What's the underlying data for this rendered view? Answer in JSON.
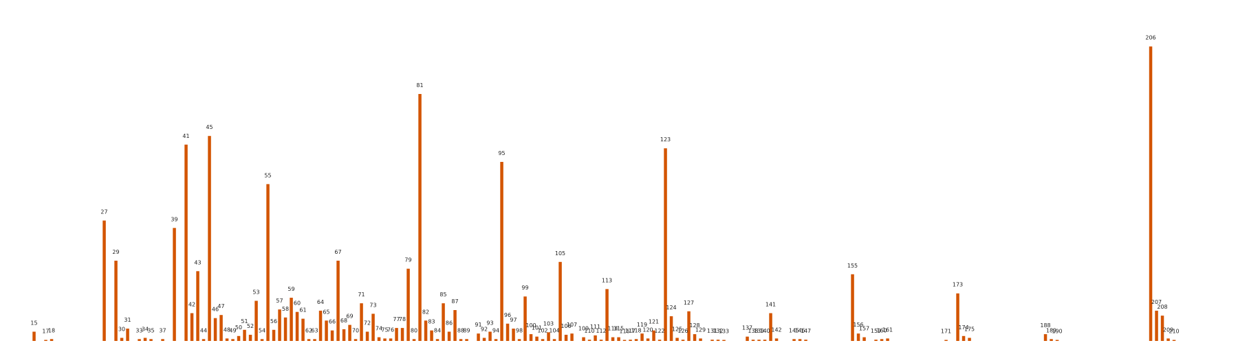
{
  "chart_data": {
    "type": "bar",
    "title": "",
    "xlabel": "",
    "ylabel": "",
    "grid": false,
    "color": "#d35400",
    "x_range": [
      12,
      212
    ],
    "ylim": [
      0,
      470
    ],
    "bars": [
      {
        "x": 15,
        "value": 15,
        "label": "15"
      },
      {
        "x": 17,
        "value": 1,
        "label": "17"
      },
      {
        "x": 18,
        "value": 3,
        "label": "18"
      },
      {
        "x": 27,
        "value": 195,
        "label": "27"
      },
      {
        "x": 29,
        "value": 130,
        "label": "29"
      },
      {
        "x": 30,
        "value": 5,
        "label": "30"
      },
      {
        "x": 31,
        "value": 20,
        "label": "31"
      },
      {
        "x": 33,
        "value": 3,
        "label": "33"
      },
      {
        "x": 34,
        "value": 5,
        "label": "34"
      },
      {
        "x": 35,
        "value": 3,
        "label": "35"
      },
      {
        "x": 37,
        "value": 3,
        "label": "37"
      },
      {
        "x": 39,
        "value": 183,
        "label": "39"
      },
      {
        "x": 41,
        "value": 318,
        "label": "41"
      },
      {
        "x": 42,
        "value": 45,
        "label": "42"
      },
      {
        "x": 43,
        "value": 113,
        "label": "43"
      },
      {
        "x": 44,
        "value": 3,
        "label": "44"
      },
      {
        "x": 45,
        "value": 332,
        "label": "45"
      },
      {
        "x": 46,
        "value": 37,
        "label": "46"
      },
      {
        "x": 47,
        "value": 42,
        "label": "47"
      },
      {
        "x": 48,
        "value": 4,
        "label": "48"
      },
      {
        "x": 49,
        "value": 3,
        "label": "49"
      },
      {
        "x": 50,
        "value": 8,
        "label": "50"
      },
      {
        "x": 51,
        "value": 18,
        "label": "51"
      },
      {
        "x": 52,
        "value": 10,
        "label": "52"
      },
      {
        "x": 53,
        "value": 65,
        "label": "53"
      },
      {
        "x": 54,
        "value": 3,
        "label": "54"
      },
      {
        "x": 55,
        "value": 254,
        "label": "55"
      },
      {
        "x": 56,
        "value": 18,
        "label": "56"
      },
      {
        "x": 57,
        "value": 51,
        "label": "57"
      },
      {
        "x": 58,
        "value": 38,
        "label": "58"
      },
      {
        "x": 59,
        "value": 70,
        "label": "59"
      },
      {
        "x": 60,
        "value": 47,
        "label": "60"
      },
      {
        "x": 61,
        "value": 36,
        "label": "61"
      },
      {
        "x": 62,
        "value": 3,
        "label": "62"
      },
      {
        "x": 63,
        "value": 3,
        "label": "63"
      },
      {
        "x": 64,
        "value": 49,
        "label": "64"
      },
      {
        "x": 65,
        "value": 33,
        "label": "65"
      },
      {
        "x": 66,
        "value": 17,
        "label": "66"
      },
      {
        "x": 67,
        "value": 130,
        "label": "67"
      },
      {
        "x": 68,
        "value": 19,
        "label": "68"
      },
      {
        "x": 69,
        "value": 26,
        "label": "69"
      },
      {
        "x": 70,
        "value": 3,
        "label": "70"
      },
      {
        "x": 71,
        "value": 61,
        "label": "71"
      },
      {
        "x": 72,
        "value": 15,
        "label": "72"
      },
      {
        "x": 73,
        "value": 44,
        "label": "73"
      },
      {
        "x": 74,
        "value": 6,
        "label": "74"
      },
      {
        "x": 75,
        "value": 4,
        "label": "75"
      },
      {
        "x": 76,
        "value": 4,
        "label": "76"
      },
      {
        "x": 77,
        "value": 21,
        "label": "77"
      },
      {
        "x": 78,
        "value": 21,
        "label": "78"
      },
      {
        "x": 79,
        "value": 117,
        "label": "79"
      },
      {
        "x": 80,
        "value": 3,
        "label": "80"
      },
      {
        "x": 81,
        "value": 400,
        "label": "81"
      },
      {
        "x": 82,
        "value": 33,
        "label": "82"
      },
      {
        "x": 83,
        "value": 17,
        "label": "83"
      },
      {
        "x": 84,
        "value": 3,
        "label": "84"
      },
      {
        "x": 85,
        "value": 61,
        "label": "85"
      },
      {
        "x": 86,
        "value": 15,
        "label": "86"
      },
      {
        "x": 87,
        "value": 50,
        "label": "87"
      },
      {
        "x": 88,
        "value": 3,
        "label": "88"
      },
      {
        "x": 89,
        "value": 3,
        "label": "89"
      },
      {
        "x": 91,
        "value": 12,
        "label": "91"
      },
      {
        "x": 92,
        "value": 5,
        "label": "92"
      },
      {
        "x": 93,
        "value": 15,
        "label": "93"
      },
      {
        "x": 94,
        "value": 3,
        "label": "94"
      },
      {
        "x": 95,
        "value": 290,
        "label": "95"
      },
      {
        "x": 96,
        "value": 28,
        "label": "96"
      },
      {
        "x": 97,
        "value": 20,
        "label": "97"
      },
      {
        "x": 98,
        "value": 3,
        "label": "98"
      },
      {
        "x": 99,
        "value": 72,
        "label": "99"
      },
      {
        "x": 100,
        "value": 11,
        "label": "100"
      },
      {
        "x": 101,
        "value": 7,
        "label": "101"
      },
      {
        "x": 102,
        "value": 3,
        "label": "102"
      },
      {
        "x": 103,
        "value": 14,
        "label": "103"
      },
      {
        "x": 104,
        "value": 3,
        "label": "104"
      },
      {
        "x": 105,
        "value": 128,
        "label": "105"
      },
      {
        "x": 106,
        "value": 10,
        "label": "106"
      },
      {
        "x": 107,
        "value": 12,
        "label": "107"
      },
      {
        "x": 109,
        "value": 6,
        "label": "109"
      },
      {
        "x": 110,
        "value": 2,
        "label": "110"
      },
      {
        "x": 111,
        "value": 9,
        "label": "111"
      },
      {
        "x": 112,
        "value": 2,
        "label": "112"
      },
      {
        "x": 113,
        "value": 84,
        "label": "113"
      },
      {
        "x": 114,
        "value": 6,
        "label": "114"
      },
      {
        "x": 115,
        "value": 6,
        "label": "115"
      },
      {
        "x": 116,
        "value": 1,
        "label": "116"
      },
      {
        "x": 117,
        "value": 2,
        "label": "117"
      },
      {
        "x": 118,
        "value": 3,
        "label": "118"
      },
      {
        "x": 119,
        "value": 12,
        "label": "119"
      },
      {
        "x": 120,
        "value": 4,
        "label": "120"
      },
      {
        "x": 121,
        "value": 17,
        "label": "121"
      },
      {
        "x": 122,
        "value": 2,
        "label": "122"
      },
      {
        "x": 123,
        "value": 312,
        "label": "123"
      },
      {
        "x": 124,
        "value": 40,
        "label": "124"
      },
      {
        "x": 125,
        "value": 5,
        "label": "125"
      },
      {
        "x": 126,
        "value": 2,
        "label": "126"
      },
      {
        "x": 127,
        "value": 48,
        "label": "127"
      },
      {
        "x": 128,
        "value": 11,
        "label": "128"
      },
      {
        "x": 129,
        "value": 4,
        "label": "129"
      },
      {
        "x": 131,
        "value": 2,
        "label": "131"
      },
      {
        "x": 132,
        "value": 2,
        "label": "132"
      },
      {
        "x": 133,
        "value": 1,
        "label": "133"
      },
      {
        "x": 137,
        "value": 7,
        "label": "137"
      },
      {
        "x": 138,
        "value": 2,
        "label": "138"
      },
      {
        "x": 139,
        "value": 2,
        "label": "139"
      },
      {
        "x": 140,
        "value": 2,
        "label": "140"
      },
      {
        "x": 141,
        "value": 45,
        "label": "141"
      },
      {
        "x": 142,
        "value": 4,
        "label": "142"
      },
      {
        "x": 145,
        "value": 3,
        "label": "145"
      },
      {
        "x": 146,
        "value": 3,
        "label": "146"
      },
      {
        "x": 147,
        "value": 2,
        "label": "147"
      },
      {
        "x": 155,
        "value": 108,
        "label": "155"
      },
      {
        "x": 156,
        "value": 12,
        "label": "156"
      },
      {
        "x": 157,
        "value": 6,
        "label": "157"
      },
      {
        "x": 159,
        "value": 2,
        "label": "159"
      },
      {
        "x": 160,
        "value": 3,
        "label": "160"
      },
      {
        "x": 161,
        "value": 4,
        "label": "161"
      },
      {
        "x": 171,
        "value": 1,
        "label": "171"
      },
      {
        "x": 173,
        "value": 77,
        "label": "173"
      },
      {
        "x": 174,
        "value": 8,
        "label": "174"
      },
      {
        "x": 175,
        "value": 5,
        "label": "175"
      },
      {
        "x": 188,
        "value": 11,
        "label": "188"
      },
      {
        "x": 189,
        "value": 3,
        "label": "189"
      },
      {
        "x": 190,
        "value": 1,
        "label": "190"
      },
      {
        "x": 206,
        "value": 477,
        "label": "206"
      },
      {
        "x": 207,
        "value": 49,
        "label": "207"
      },
      {
        "x": 208,
        "value": 41,
        "label": "208"
      },
      {
        "x": 209,
        "value": 4,
        "label": "209"
      },
      {
        "x": 210,
        "value": 1,
        "label": "210"
      }
    ]
  }
}
